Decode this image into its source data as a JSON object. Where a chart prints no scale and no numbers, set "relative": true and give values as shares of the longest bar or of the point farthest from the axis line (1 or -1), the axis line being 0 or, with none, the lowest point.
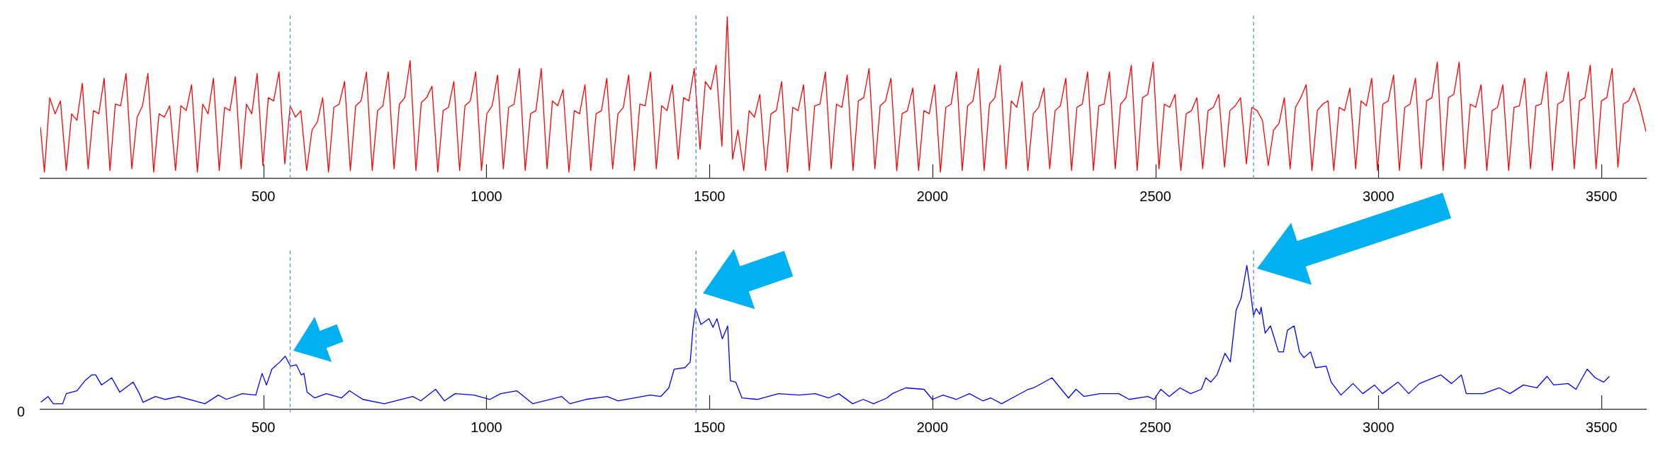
{
  "chart_data": [
    {
      "type": "line",
      "relative": true,
      "xlim": [
        0,
        3600
      ],
      "xticks": [
        500,
        1000,
        1500,
        2000,
        2500,
        3000,
        3500
      ],
      "grid": false,
      "ref_lines": [
        {
          "axis": "x",
          "value": 560,
          "color": "#5b8bd9",
          "line_style": "dashed"
        },
        {
          "axis": "x",
          "value": 1470,
          "color": "#5b8bd9",
          "line_style": "dashed"
        },
        {
          "axis": "x",
          "value": 2720,
          "color": "#5b8bd9",
          "line_style": "dashed"
        }
      ],
      "series": [
        {
          "color": "#ff0000",
          "x": [
            0,
            9,
            21,
            33,
            45,
            58,
            70,
            82,
            94,
            107,
            119,
            131,
            143,
            156,
            168,
            180,
            192,
            205,
            217,
            229,
            241,
            254,
            266,
            278,
            290,
            303,
            315,
            327,
            339,
            352,
            364,
            376,
            388,
            401,
            413,
            425,
            437,
            450,
            462,
            474,
            486,
            499,
            511,
            523,
            535,
            548,
            560,
            572,
            584,
            597,
            609,
            621,
            633,
            646,
            658,
            670,
            682,
            695,
            707,
            719,
            731,
            744,
            756,
            768,
            780,
            793,
            805,
            817,
            829,
            842,
            854,
            866,
            878,
            891,
            903,
            915,
            927,
            940,
            952,
            964,
            976,
            989,
            1001,
            1013,
            1025,
            1038,
            1050,
            1062,
            1074,
            1087,
            1099,
            1111,
            1123,
            1136,
            1148,
            1160,
            1172,
            1185,
            1197,
            1209,
            1221,
            1234,
            1246,
            1258,
            1270,
            1283,
            1295,
            1307,
            1319,
            1332,
            1344,
            1356,
            1368,
            1381,
            1393,
            1405,
            1417,
            1430,
            1442,
            1454,
            1466,
            1479,
            1491,
            1503,
            1515,
            1528,
            1540,
            1552,
            1564,
            1577,
            1589,
            1601,
            1613,
            1626,
            1638,
            1650,
            1662,
            1675,
            1687,
            1699,
            1711,
            1724,
            1736,
            1748,
            1760,
            1773,
            1785,
            1797,
            1809,
            1822,
            1834,
            1846,
            1858,
            1871,
            1883,
            1895,
            1907,
            1920,
            1932,
            1944,
            1956,
            1969,
            1981,
            1993,
            2005,
            2018,
            2030,
            2042,
            2054,
            2067,
            2079,
            2091,
            2103,
            2116,
            2128,
            2140,
            2152,
            2165,
            2177,
            2189,
            2201,
            2214,
            2226,
            2238,
            2250,
            2263,
            2275,
            2287,
            2299,
            2312,
            2324,
            2336,
            2348,
            2361,
            2373,
            2385,
            2397,
            2410,
            2422,
            2434,
            2446,
            2459,
            2471,
            2483,
            2495,
            2508,
            2520,
            2532,
            2544,
            2557,
            2569,
            2581,
            2593,
            2606,
            2618,
            2630,
            2642,
            2655,
            2667,
            2679,
            2691,
            2704,
            2716,
            2728,
            2740,
            2753,
            2765,
            2777,
            2789,
            2802,
            2814,
            2826,
            2838,
            2851,
            2863,
            2875,
            2887,
            2900,
            2912,
            2924,
            2936,
            2949,
            2961,
            2973,
            2985,
            2998,
            3010,
            3022,
            3034,
            3047,
            3059,
            3071,
            3083,
            3096,
            3108,
            3120,
            3132,
            3145,
            3157,
            3169,
            3181,
            3194,
            3206,
            3218,
            3230,
            3243,
            3255,
            3267,
            3279,
            3292,
            3304,
            3316,
            3328,
            3341,
            3353,
            3365,
            3377,
            3390,
            3402,
            3414,
            3426,
            3439,
            3451,
            3463,
            3475,
            3488,
            3500,
            3512,
            3524,
            3537,
            3549,
            3561,
            3573,
            3586,
            3600
          ],
          "values": [
            0.32,
            0.04,
            0.5,
            0.4,
            0.48,
            0.05,
            0.4,
            0.36,
            0.59,
            0.06,
            0.42,
            0.4,
            0.62,
            0.05,
            0.46,
            0.45,
            0.65,
            0.06,
            0.38,
            0.45,
            0.65,
            0.04,
            0.4,
            0.38,
            0.45,
            0.05,
            0.45,
            0.42,
            0.58,
            0.04,
            0.46,
            0.4,
            0.62,
            0.05,
            0.44,
            0.42,
            0.63,
            0.06,
            0.46,
            0.4,
            0.65,
            0.08,
            0.5,
            0.48,
            0.66,
            0.09,
            0.45,
            0.38,
            0.42,
            0.05,
            0.3,
            0.35,
            0.5,
            0.04,
            0.44,
            0.46,
            0.6,
            0.05,
            0.45,
            0.48,
            0.66,
            0.05,
            0.42,
            0.45,
            0.66,
            0.06,
            0.46,
            0.5,
            0.73,
            0.05,
            0.47,
            0.5,
            0.57,
            0.04,
            0.42,
            0.44,
            0.6,
            0.05,
            0.45,
            0.48,
            0.66,
            0.05,
            0.4,
            0.45,
            0.64,
            0.06,
            0.44,
            0.46,
            0.68,
            0.05,
            0.4,
            0.42,
            0.68,
            0.06,
            0.48,
            0.45,
            0.55,
            0.04,
            0.42,
            0.4,
            0.58,
            0.05,
            0.4,
            0.42,
            0.62,
            0.06,
            0.4,
            0.44,
            0.64,
            0.05,
            0.46,
            0.45,
            0.66,
            0.06,
            0.45,
            0.42,
            0.58,
            0.12,
            0.5,
            0.48,
            0.68,
            0.18,
            0.6,
            0.55,
            0.7,
            0.2,
            1.0,
            0.12,
            0.3,
            0.05,
            0.42,
            0.38,
            0.52,
            0.05,
            0.4,
            0.42,
            0.6,
            0.04,
            0.44,
            0.42,
            0.58,
            0.05,
            0.45,
            0.46,
            0.66,
            0.06,
            0.46,
            0.44,
            0.64,
            0.05,
            0.48,
            0.5,
            0.68,
            0.06,
            0.45,
            0.48,
            0.62,
            0.05,
            0.4,
            0.42,
            0.56,
            0.05,
            0.42,
            0.4,
            0.58,
            0.04,
            0.44,
            0.46,
            0.66,
            0.05,
            0.45,
            0.48,
            0.68,
            0.05,
            0.46,
            0.5,
            0.7,
            0.06,
            0.48,
            0.44,
            0.6,
            0.05,
            0.4,
            0.44,
            0.56,
            0.06,
            0.42,
            0.45,
            0.62,
            0.05,
            0.44,
            0.46,
            0.66,
            0.05,
            0.45,
            0.46,
            0.66,
            0.06,
            0.46,
            0.5,
            0.7,
            0.05,
            0.5,
            0.52,
            0.72,
            0.06,
            0.46,
            0.44,
            0.52,
            0.05,
            0.4,
            0.42,
            0.5,
            0.06,
            0.42,
            0.44,
            0.52,
            0.07,
            0.42,
            0.45,
            0.5,
            0.09,
            0.44,
            0.42,
            0.36,
            0.08,
            0.3,
            0.34,
            0.5,
            0.06,
            0.44,
            0.5,
            0.58,
            0.05,
            0.42,
            0.46,
            0.48,
            0.05,
            0.44,
            0.42,
            0.56,
            0.06,
            0.48,
            0.45,
            0.62,
            0.05,
            0.46,
            0.48,
            0.64,
            0.05,
            0.44,
            0.46,
            0.62,
            0.06,
            0.48,
            0.5,
            0.72,
            0.05,
            0.5,
            0.52,
            0.72,
            0.06,
            0.46,
            0.44,
            0.58,
            0.05,
            0.42,
            0.44,
            0.58,
            0.05,
            0.44,
            0.45,
            0.62,
            0.06,
            0.45,
            0.46,
            0.66,
            0.05,
            0.46,
            0.48,
            0.66,
            0.06,
            0.48,
            0.5,
            0.7,
            0.06,
            0.48,
            0.5,
            0.68,
            0.07,
            0.46,
            0.48,
            0.56,
            0.45,
            0.29
          ]
        }
      ]
    },
    {
      "type": "line",
      "relative": true,
      "xlim": [
        0,
        3600
      ],
      "xticks": [
        500,
        1000,
        1500,
        2000,
        2500,
        3000,
        3500
      ],
      "grid": false,
      "annotations": [
        "0"
      ],
      "ref_lines": [
        {
          "axis": "x",
          "value": 560,
          "color": "#5b8bd9",
          "line_style": "dashed"
        },
        {
          "axis": "x",
          "value": 1470,
          "color": "#5b8bd9",
          "line_style": "dashed"
        },
        {
          "axis": "x",
          "value": 2720,
          "color": "#5b8bd9",
          "line_style": "dashed"
        }
      ],
      "series": [
        {
          "color": "#0000ff",
          "x": [
            1,
            17,
            29,
            50,
            58,
            82,
            100,
            115,
            124,
            137,
            160,
            178,
            208,
            222,
            230,
            258,
            280,
            310,
            369,
            399,
            417,
            453,
            483,
            497,
            507,
            519,
            537,
            549,
            561,
            574,
            585,
            591,
            598,
            615,
            641,
            675,
            693,
            723,
            771,
            835,
            853,
            886,
            906,
            930,
            972,
            1008,
            1032,
            1068,
            1104,
            1169,
            1187,
            1223,
            1271,
            1295,
            1367,
            1391,
            1409,
            1421,
            1445,
            1457,
            1463,
            1469,
            1481,
            1499,
            1508,
            1517,
            1529,
            1541,
            1547,
            1559,
            1573,
            1607,
            1655,
            1701,
            1737,
            1767,
            1790,
            1821,
            1845,
            1868,
            1898,
            1910,
            1940,
            1981,
            2000,
            2024,
            2054,
            2083,
            2113,
            2131,
            2155,
            2179,
            2215,
            2227,
            2268,
            2305,
            2322,
            2340,
            2376,
            2418,
            2441,
            2483,
            2497,
            2512,
            2531,
            2555,
            2579,
            2603,
            2613,
            2624,
            2638,
            2656,
            2668,
            2681,
            2692,
            2705,
            2711,
            2720,
            2726,
            2734,
            2737,
            2746,
            2758,
            2776,
            2787,
            2796,
            2811,
            2823,
            2833,
            2848,
            2859,
            2883,
            2894,
            2916,
            2943,
            2965,
            2991,
            3009,
            3044,
            3068,
            3092,
            3140,
            3164,
            3186,
            3197,
            3235,
            3271,
            3295,
            3325,
            3355,
            3378,
            3393,
            3425,
            3443,
            3468,
            3486,
            3505,
            3518
          ],
          "values": [
            0.05,
            0.09,
            0.04,
            0.04,
            0.11,
            0.13,
            0.2,
            0.24,
            0.24,
            0.17,
            0.22,
            0.12,
            0.19,
            0.11,
            0.05,
            0.09,
            0.07,
            0.09,
            0.04,
            0.1,
            0.07,
            0.11,
            0.1,
            0.25,
            0.17,
            0.28,
            0.33,
            0.37,
            0.3,
            0.31,
            0.24,
            0.25,
            0.12,
            0.08,
            0.11,
            0.08,
            0.13,
            0.07,
            0.04,
            0.09,
            0.06,
            0.14,
            0.06,
            0.11,
            0.1,
            0.07,
            0.11,
            0.13,
            0.04,
            0.09,
            0.04,
            0.07,
            0.09,
            0.06,
            0.1,
            0.09,
            0.15,
            0.28,
            0.29,
            0.33,
            0.56,
            0.7,
            0.59,
            0.63,
            0.57,
            0.63,
            0.49,
            0.58,
            0.2,
            0.19,
            0.08,
            0.07,
            0.11,
            0.1,
            0.11,
            0.08,
            0.11,
            0.04,
            0.07,
            0.04,
            0.08,
            0.11,
            0.15,
            0.14,
            0.07,
            0.1,
            0.07,
            0.11,
            0.06,
            0.08,
            0.04,
            0.08,
            0.14,
            0.15,
            0.22,
            0.08,
            0.14,
            0.09,
            0.11,
            0.11,
            0.07,
            0.09,
            0.07,
            0.14,
            0.09,
            0.15,
            0.11,
            0.14,
            0.22,
            0.19,
            0.24,
            0.39,
            0.33,
            0.69,
            0.77,
            1.0,
            0.87,
            0.65,
            0.7,
            0.66,
            0.71,
            0.53,
            0.58,
            0.4,
            0.4,
            0.55,
            0.58,
            0.4,
            0.36,
            0.4,
            0.29,
            0.3,
            0.19,
            0.1,
            0.18,
            0.11,
            0.17,
            0.11,
            0.19,
            0.11,
            0.18,
            0.24,
            0.18,
            0.24,
            0.11,
            0.11,
            0.15,
            0.11,
            0.17,
            0.15,
            0.23,
            0.17,
            0.18,
            0.14,
            0.28,
            0.22,
            0.19,
            0.23
          ]
        }
      ]
    }
  ]
}
